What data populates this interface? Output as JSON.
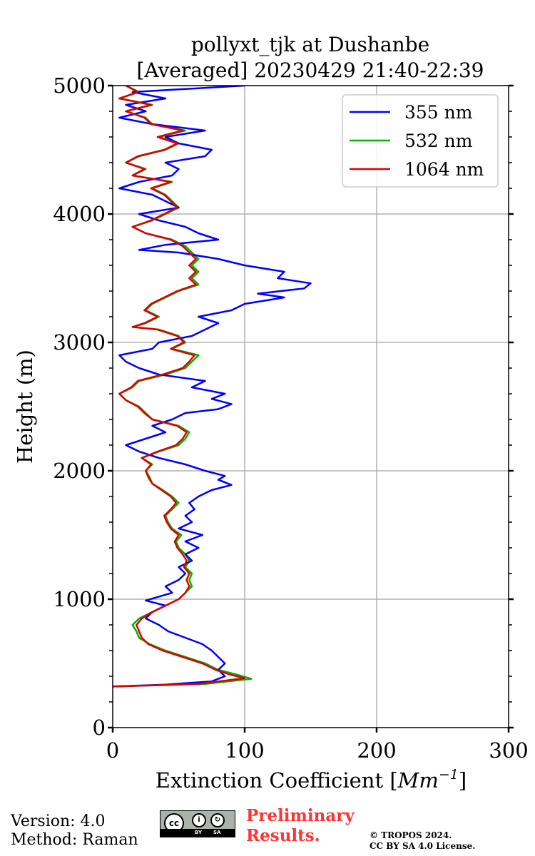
{
  "chart_data": {
    "type": "line",
    "title_line1": "pollyxt_tjk at Dushanbe",
    "title_line2": "[Averaged] 20230429 21:40-22:39",
    "xlabel_prefix": "Extinction Coefficient [",
    "xlabel_unit_base": "Mm",
    "xlabel_unit_exp": "−1",
    "xlabel_suffix": "]",
    "ylabel": "Height (m)",
    "xlim": [
      0,
      300
    ],
    "ylim": [
      0,
      5000
    ],
    "xticks": [
      0,
      100,
      200,
      300
    ],
    "yticks": [
      0,
      1000,
      2000,
      3000,
      4000,
      5000
    ],
    "grid": true,
    "legend_position": "top-right",
    "series": [
      {
        "name": "355 nm",
        "color": "#0000ff",
        "points": [
          [
            0,
            320
          ],
          [
            40,
            335
          ],
          [
            75,
            360
          ],
          [
            85,
            400
          ],
          [
            80,
            450
          ],
          [
            85,
            500
          ],
          [
            80,
            550
          ],
          [
            75,
            600
          ],
          [
            68,
            650
          ],
          [
            55,
            700
          ],
          [
            42,
            750
          ],
          [
            35,
            800
          ],
          [
            25,
            850
          ],
          [
            30,
            900
          ],
          [
            40,
            950
          ],
          [
            25,
            990
          ],
          [
            35,
            1020
          ],
          [
            45,
            1050
          ],
          [
            40,
            1100
          ],
          [
            50,
            1150
          ],
          [
            55,
            1200
          ],
          [
            50,
            1250
          ],
          [
            60,
            1300
          ],
          [
            55,
            1350
          ],
          [
            65,
            1400
          ],
          [
            55,
            1450
          ],
          [
            68,
            1500
          ],
          [
            50,
            1550
          ],
          [
            60,
            1600
          ],
          [
            55,
            1650
          ],
          [
            62,
            1700
          ],
          [
            58,
            1750
          ],
          [
            65,
            1800
          ],
          [
            75,
            1850
          ],
          [
            90,
            1890
          ],
          [
            80,
            1930
          ],
          [
            85,
            1960
          ],
          [
            70,
            2000
          ],
          [
            55,
            2050
          ],
          [
            35,
            2100
          ],
          [
            20,
            2150
          ],
          [
            10,
            2200
          ],
          [
            25,
            2250
          ],
          [
            40,
            2300
          ],
          [
            30,
            2350
          ],
          [
            45,
            2400
          ],
          [
            55,
            2450
          ],
          [
            80,
            2480
          ],
          [
            90,
            2520
          ],
          [
            75,
            2560
          ],
          [
            85,
            2600
          ],
          [
            60,
            2650
          ],
          [
            70,
            2700
          ],
          [
            35,
            2750
          ],
          [
            20,
            2800
          ],
          [
            10,
            2850
          ],
          [
            5,
            2900
          ],
          [
            30,
            2950
          ],
          [
            35,
            3000
          ],
          [
            60,
            3050
          ],
          [
            70,
            3100
          ],
          [
            80,
            3150
          ],
          [
            65,
            3200
          ],
          [
            90,
            3250
          ],
          [
            100,
            3300
          ],
          [
            130,
            3350
          ],
          [
            110,
            3380
          ],
          [
            145,
            3420
          ],
          [
            150,
            3460
          ],
          [
            125,
            3500
          ],
          [
            130,
            3550
          ],
          [
            100,
            3600
          ],
          [
            80,
            3650
          ],
          [
            50,
            3700
          ],
          [
            20,
            3720
          ],
          [
            40,
            3760
          ],
          [
            80,
            3800
          ],
          [
            65,
            3850
          ],
          [
            55,
            3900
          ],
          [
            35,
            3950
          ],
          [
            20,
            4000
          ],
          [
            50,
            4050
          ],
          [
            40,
            4100
          ],
          [
            30,
            4150
          ],
          [
            5,
            4200
          ],
          [
            20,
            4250
          ],
          [
            45,
            4300
          ],
          [
            50,
            4350
          ],
          [
            40,
            4400
          ],
          [
            70,
            4450
          ],
          [
            75,
            4500
          ],
          [
            50,
            4550
          ],
          [
            40,
            4600
          ],
          [
            70,
            4650
          ],
          [
            30,
            4700
          ],
          [
            5,
            4750
          ],
          [
            25,
            4800
          ],
          [
            10,
            4850
          ],
          [
            40,
            4900
          ],
          [
            15,
            4950
          ],
          [
            100,
            5000
          ]
        ]
      },
      {
        "name": "532 nm",
        "color": "#00b300",
        "points": [
          [
            0,
            320
          ],
          [
            70,
            340
          ],
          [
            105,
            380
          ],
          [
            95,
            410
          ],
          [
            80,
            450
          ],
          [
            70,
            500
          ],
          [
            55,
            550
          ],
          [
            40,
            600
          ],
          [
            28,
            650
          ],
          [
            20,
            700
          ],
          [
            18,
            750
          ],
          [
            15,
            800
          ],
          [
            20,
            850
          ],
          [
            30,
            900
          ],
          [
            40,
            950
          ],
          [
            50,
            1000
          ],
          [
            55,
            1050
          ],
          [
            60,
            1100
          ],
          [
            58,
            1150
          ],
          [
            60,
            1200
          ],
          [
            55,
            1250
          ],
          [
            58,
            1300
          ],
          [
            55,
            1350
          ],
          [
            50,
            1400
          ],
          [
            48,
            1450
          ],
          [
            52,
            1500
          ],
          [
            45,
            1550
          ],
          [
            42,
            1600
          ],
          [
            40,
            1650
          ],
          [
            45,
            1700
          ],
          [
            50,
            1750
          ],
          [
            45,
            1800
          ],
          [
            38,
            1850
          ],
          [
            30,
            1900
          ],
          [
            28,
            1950
          ],
          [
            25,
            2000
          ],
          [
            30,
            2050
          ],
          [
            22,
            2100
          ],
          [
            35,
            2150
          ],
          [
            50,
            2200
          ],
          [
            55,
            2250
          ],
          [
            58,
            2300
          ],
          [
            50,
            2350
          ],
          [
            30,
            2400
          ],
          [
            25,
            2450
          ],
          [
            20,
            2500
          ],
          [
            10,
            2550
          ],
          [
            5,
            2600
          ],
          [
            15,
            2650
          ],
          [
            20,
            2700
          ],
          [
            40,
            2750
          ],
          [
            55,
            2800
          ],
          [
            60,
            2850
          ],
          [
            65,
            2900
          ],
          [
            45,
            2950
          ],
          [
            55,
            3000
          ],
          [
            50,
            3050
          ],
          [
            35,
            3100
          ],
          [
            15,
            3120
          ],
          [
            25,
            3150
          ],
          [
            35,
            3200
          ],
          [
            25,
            3250
          ],
          [
            30,
            3300
          ],
          [
            40,
            3350
          ],
          [
            50,
            3400
          ],
          [
            65,
            3450
          ],
          [
            60,
            3500
          ],
          [
            65,
            3550
          ],
          [
            60,
            3600
          ],
          [
            65,
            3650
          ],
          [
            60,
            3700
          ],
          [
            55,
            3750
          ],
          [
            45,
            3800
          ],
          [
            25,
            3850
          ],
          [
            15,
            3900
          ],
          [
            30,
            3950
          ],
          [
            40,
            4000
          ],
          [
            50,
            4050
          ],
          [
            45,
            4100
          ],
          [
            40,
            4150
          ],
          [
            30,
            4200
          ],
          [
            45,
            4250
          ],
          [
            15,
            4300
          ],
          [
            25,
            4350
          ],
          [
            10,
            4400
          ],
          [
            20,
            4450
          ],
          [
            40,
            4500
          ],
          [
            50,
            4550
          ],
          [
            35,
            4600
          ],
          [
            55,
            4650
          ],
          [
            30,
            4700
          ],
          [
            25,
            4750
          ],
          [
            10,
            4800
          ],
          [
            30,
            4850
          ],
          [
            5,
            4900
          ],
          [
            20,
            4950
          ],
          [
            10,
            5000
          ]
        ]
      },
      {
        "name": "1064 nm",
        "color": "#dd0000",
        "points": [
          [
            0,
            320
          ],
          [
            65,
            340
          ],
          [
            100,
            385
          ],
          [
            90,
            410
          ],
          [
            78,
            450
          ],
          [
            68,
            500
          ],
          [
            53,
            550
          ],
          [
            38,
            600
          ],
          [
            27,
            650
          ],
          [
            22,
            700
          ],
          [
            20,
            750
          ],
          [
            18,
            800
          ],
          [
            22,
            850
          ],
          [
            30,
            900
          ],
          [
            40,
            950
          ],
          [
            50,
            1000
          ],
          [
            55,
            1050
          ],
          [
            58,
            1100
          ],
          [
            56,
            1150
          ],
          [
            58,
            1200
          ],
          [
            54,
            1250
          ],
          [
            56,
            1300
          ],
          [
            53,
            1350
          ],
          [
            49,
            1400
          ],
          [
            47,
            1450
          ],
          [
            50,
            1500
          ],
          [
            44,
            1550
          ],
          [
            41,
            1600
          ],
          [
            39,
            1650
          ],
          [
            44,
            1700
          ],
          [
            48,
            1750
          ],
          [
            44,
            1800
          ],
          [
            37,
            1850
          ],
          [
            30,
            1900
          ],
          [
            27,
            1950
          ],
          [
            25,
            2000
          ],
          [
            29,
            2050
          ],
          [
            22,
            2100
          ],
          [
            34,
            2150
          ],
          [
            48,
            2200
          ],
          [
            53,
            2250
          ],
          [
            56,
            2300
          ],
          [
            49,
            2350
          ],
          [
            30,
            2400
          ],
          [
            24,
            2450
          ],
          [
            19,
            2500
          ],
          [
            10,
            2550
          ],
          [
            5,
            2600
          ],
          [
            14,
            2650
          ],
          [
            19,
            2700
          ],
          [
            38,
            2750
          ],
          [
            53,
            2800
          ],
          [
            58,
            2850
          ],
          [
            62,
            2900
          ],
          [
            44,
            2950
          ],
          [
            54,
            3000
          ],
          [
            49,
            3050
          ],
          [
            34,
            3100
          ],
          [
            15,
            3120
          ],
          [
            24,
            3150
          ],
          [
            34,
            3200
          ],
          [
            24,
            3250
          ],
          [
            29,
            3300
          ],
          [
            39,
            3350
          ],
          [
            49,
            3400
          ],
          [
            63,
            3450
          ],
          [
            58,
            3500
          ],
          [
            63,
            3550
          ],
          [
            58,
            3600
          ],
          [
            63,
            3650
          ],
          [
            58,
            3700
          ],
          [
            53,
            3750
          ],
          [
            44,
            3800
          ],
          [
            25,
            3850
          ],
          [
            15,
            3900
          ],
          [
            29,
            3950
          ],
          [
            39,
            4000
          ],
          [
            49,
            4050
          ],
          [
            44,
            4100
          ],
          [
            39,
            4150
          ],
          [
            29,
            4200
          ],
          [
            44,
            4250
          ],
          [
            15,
            4300
          ],
          [
            24,
            4350
          ],
          [
            10,
            4400
          ],
          [
            19,
            4450
          ],
          [
            39,
            4500
          ],
          [
            49,
            4550
          ],
          [
            34,
            4600
          ],
          [
            53,
            4650
          ],
          [
            29,
            4700
          ],
          [
            24,
            4750
          ],
          [
            10,
            4800
          ],
          [
            29,
            4850
          ],
          [
            5,
            4900
          ],
          [
            19,
            4950
          ],
          [
            10,
            5000
          ]
        ]
      }
    ]
  },
  "footer": {
    "version": "Version: 4.0",
    "method": "Method: Raman",
    "license_badge_cc": "cc",
    "license_badge_by": "BY",
    "license_badge_sa": "SA",
    "preliminary_line1": "Preliminary",
    "preliminary_line2": "Results.",
    "copyright_line1": "© TROPOS 2024.",
    "copyright_line2": "CC BY SA 4.0 License."
  }
}
